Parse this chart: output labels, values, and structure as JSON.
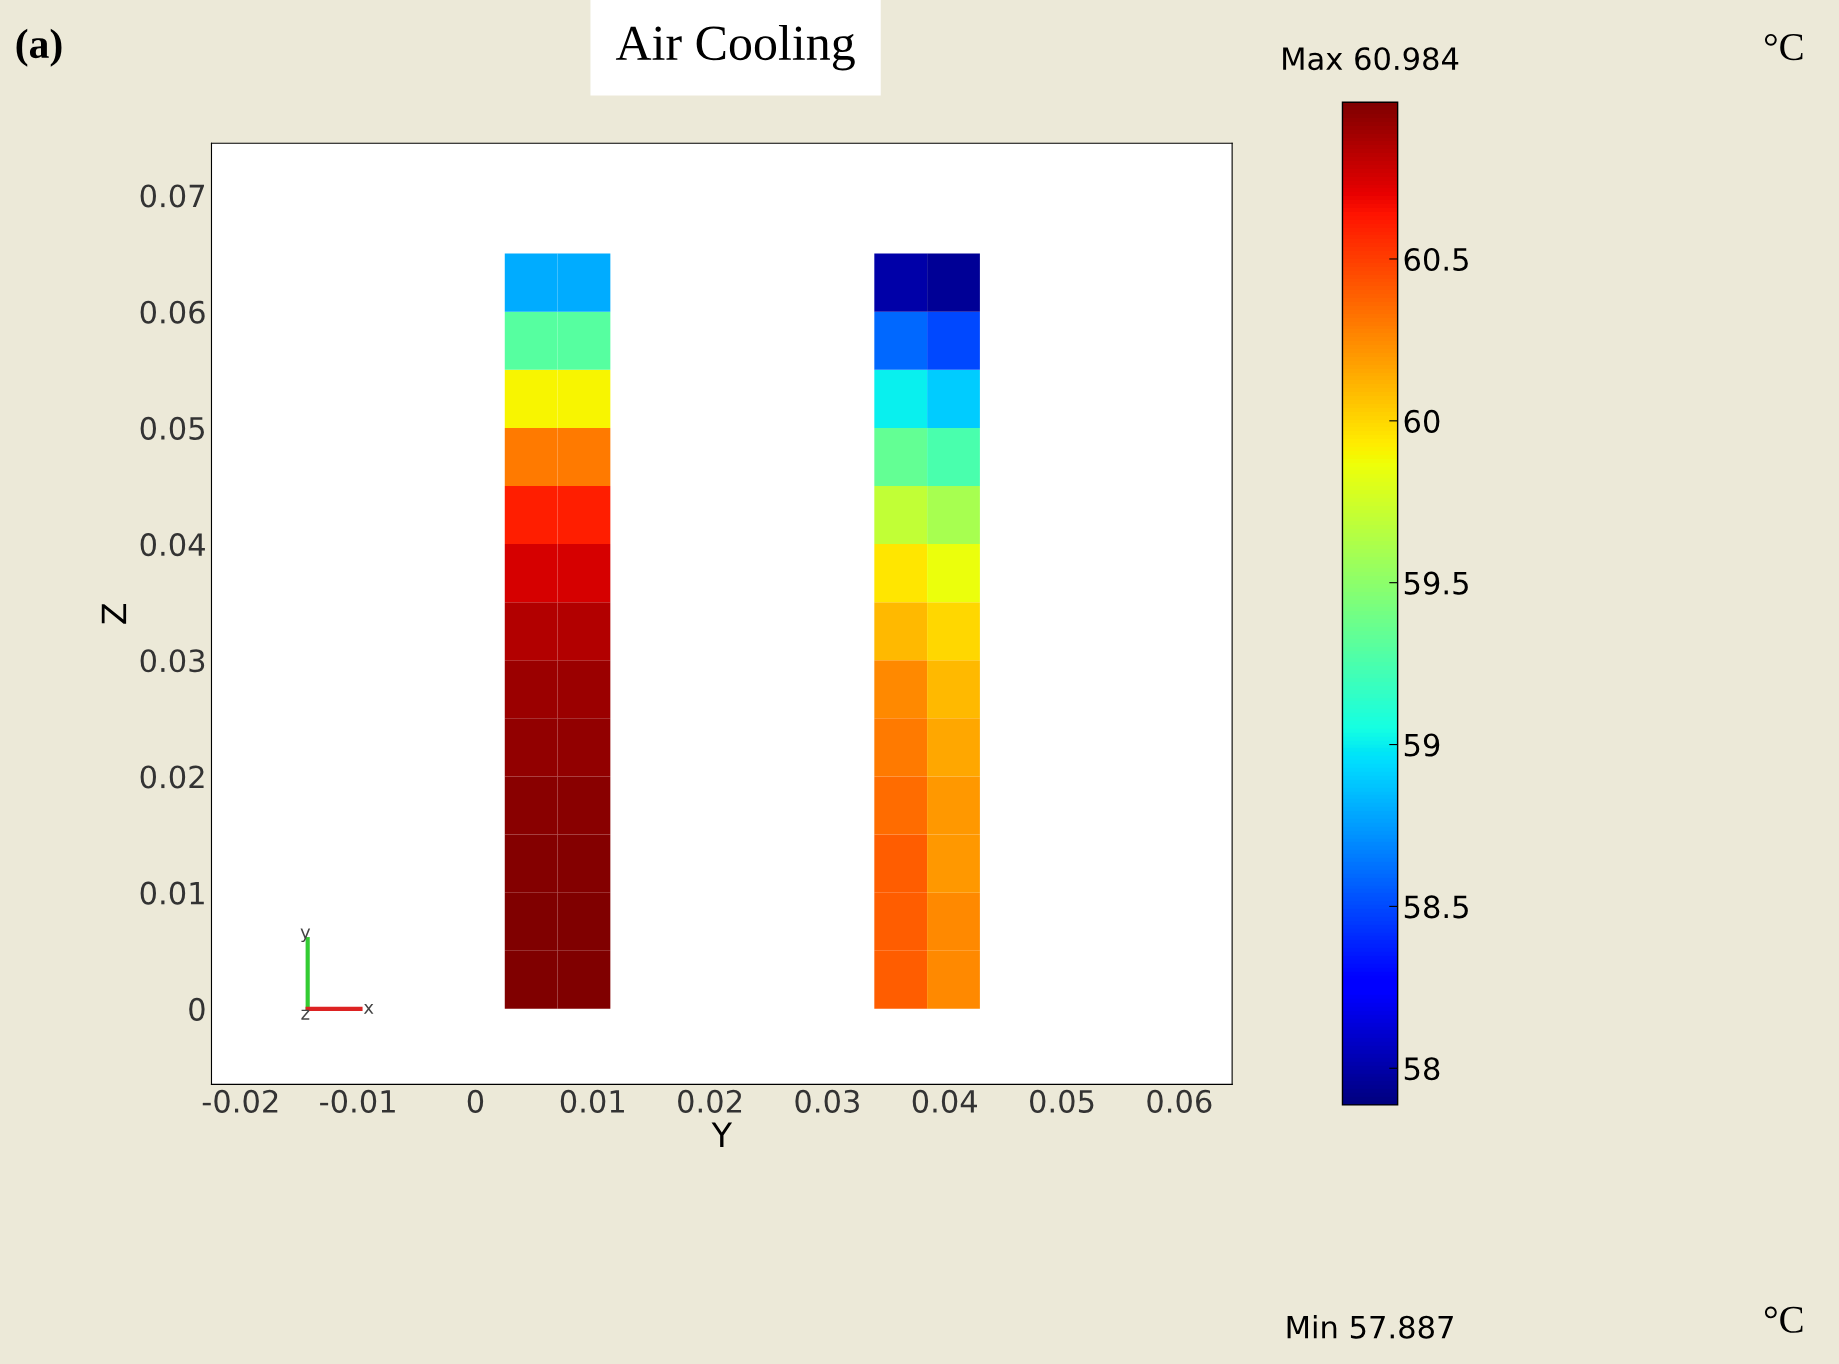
{
  "chart_data": {
    "type": "heatmap",
    "title": "Air Cooling",
    "xlabel": "Y",
    "ylabel": "Z",
    "clabel": "°C",
    "x": [
      0.00475,
      0.00925,
      0.01375,
      0.01825,
      0.02275,
      0.02725,
      0.03175,
      0.03625,
      0.04075
    ],
    "y": [
      0.0625,
      0.0575,
      0.0525,
      0.0475,
      0.0425,
      0.0375,
      0.0325,
      0.0275,
      0.0225,
      0.0175,
      0.0125,
      0.0075,
      0.0025
    ],
    "cells": [
      [
        58.8,
        58.8,
        null,
        null,
        null,
        null,
        null,
        58.0,
        57.95
      ],
      [
        59.3,
        59.3,
        null,
        null,
        null,
        null,
        null,
        58.6,
        58.5
      ],
      [
        59.9,
        59.9,
        null,
        null,
        null,
        null,
        null,
        59.0,
        58.9
      ],
      [
        60.3,
        60.3,
        null,
        null,
        null,
        null,
        null,
        59.35,
        59.25
      ],
      [
        60.6,
        60.6,
        null,
        null,
        null,
        null,
        null,
        59.7,
        59.6
      ],
      [
        60.75,
        60.75,
        null,
        null,
        null,
        null,
        null,
        59.95,
        59.85
      ],
      [
        60.85,
        60.85,
        null,
        null,
        null,
        null,
        null,
        60.1,
        60.0
      ],
      [
        60.9,
        60.9,
        null,
        null,
        null,
        null,
        null,
        60.25,
        60.1
      ],
      [
        60.93,
        60.93,
        null,
        null,
        null,
        null,
        null,
        60.3,
        60.15
      ],
      [
        60.95,
        60.95,
        null,
        null,
        null,
        null,
        null,
        60.35,
        60.2
      ],
      [
        60.97,
        60.97,
        null,
        null,
        null,
        null,
        null,
        60.4,
        60.2
      ],
      [
        60.98,
        60.98,
        null,
        null,
        null,
        null,
        null,
        60.4,
        60.25
      ],
      [
        60.98,
        60.98,
        null,
        null,
        null,
        null,
        null,
        60.4,
        60.25
      ]
    ],
    "xlim": [
      -0.0225,
      0.0645
    ],
    "ylim": [
      -0.0065,
      0.0745
    ],
    "xticks": [
      -0.02,
      -0.01,
      0,
      0.01,
      0.02,
      0.03,
      0.04,
      0.05,
      0.06
    ],
    "yticks": [
      0,
      0.01,
      0.02,
      0.03,
      0.04,
      0.05,
      0.06,
      0.07
    ],
    "clim": [
      57.887,
      60.984
    ],
    "cticks": [
      58,
      58.5,
      59,
      59.5,
      60,
      60.5
    ],
    "grid": false,
    "annotations": [
      "(a)",
      "Max 60.984",
      "Min 57.887",
      "°C",
      "y",
      "z",
      "x"
    ]
  }
}
